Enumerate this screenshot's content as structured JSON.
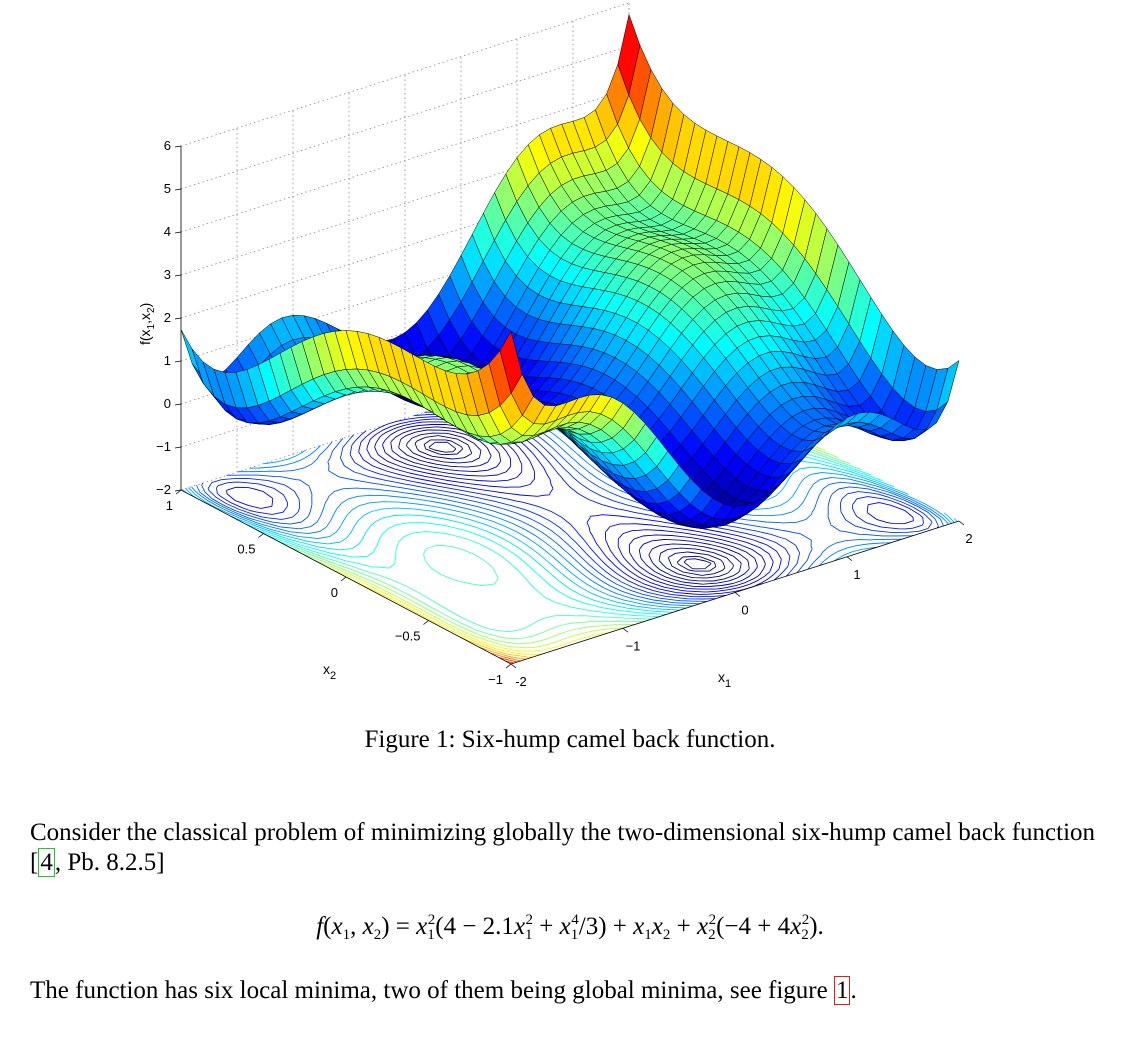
{
  "chart_data": {
    "type": "surface3d",
    "function": "x1^2(4 - 2.1x1^2 + x1^4/3) + x1*x2 + x2^2(-4 + 4x2^2)",
    "x1_range": [
      -2,
      2
    ],
    "x2_range": [
      -1,
      1
    ],
    "zlim": [
      -2,
      6
    ],
    "x1_ticks": [
      "-2",
      "−1",
      "0",
      "1",
      "2"
    ],
    "x2_ticks": [
      "−1",
      "−0.5",
      "0",
      "0.5",
      "1"
    ],
    "z_ticks": [
      "−2",
      "−1",
      "0",
      "1",
      "2",
      "3",
      "4",
      "5",
      "6"
    ],
    "xlabel": "x1",
    "ylabel": "x2",
    "zlabel": "f(x1,x2)",
    "contour_projection": true,
    "grid": true
  },
  "caption": "Figure 1: Six-hump camel back function.",
  "paragraph1_a": "Consider the classical problem of minimizing globally the two-dimensional six-hump camel back function [",
  "ref_book": "4",
  "paragraph1_b": ", Pb.  8.2.5]",
  "paragraph2_a": "The function has six local minima, two of them being global minima, see figure ",
  "ref_figure": "1",
  "paragraph2_b": "."
}
